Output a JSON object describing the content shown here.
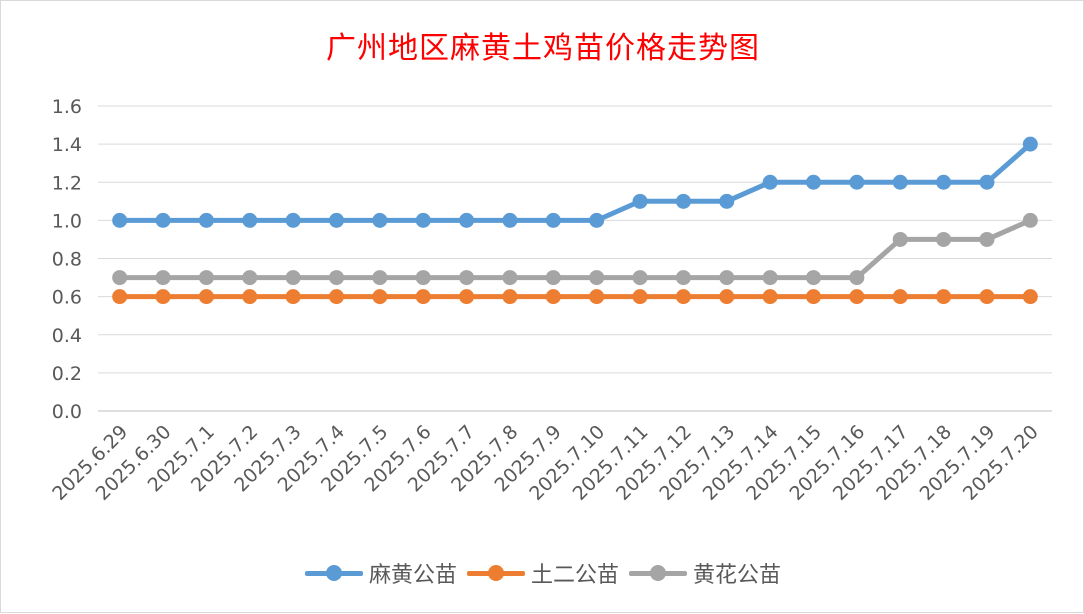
{
  "chart_data": {
    "type": "line",
    "title": "广州地区麻黄土鸡苗价格走势图",
    "xlabel": "",
    "ylabel": "",
    "categories": [
      "2025.6.29",
      "2025.6.30",
      "2025.7.1",
      "2025.7.2",
      "2025.7.3",
      "2025.7.4",
      "2025.7.5",
      "2025.7.6",
      "2025.7.7",
      "2025.7.8",
      "2025.7.9",
      "2025.7.10",
      "2025.7.11",
      "2025.7.12",
      "2025.7.13",
      "2025.7.14",
      "2025.7.15",
      "2025.7.16",
      "2025.7.17",
      "2025.7.18",
      "2025.7.19",
      "2025.7.20"
    ],
    "ylim": [
      0,
      1.6
    ],
    "yticks": [
      "0.0",
      "0.2",
      "0.4",
      "0.6",
      "0.8",
      "1.0",
      "1.2",
      "1.4",
      "1.6"
    ],
    "grid": true,
    "legend_position": "bottom",
    "series": [
      {
        "name": "麻黄公苗",
        "color": "#5b9bd5",
        "values": [
          1.0,
          1.0,
          1.0,
          1.0,
          1.0,
          1.0,
          1.0,
          1.0,
          1.0,
          1.0,
          1.0,
          1.0,
          1.1,
          1.1,
          1.1,
          1.2,
          1.2,
          1.2,
          1.2,
          1.2,
          1.2,
          1.4
        ]
      },
      {
        "name": "土二公苗",
        "color": "#ed7d31",
        "values": [
          0.6,
          0.6,
          0.6,
          0.6,
          0.6,
          0.6,
          0.6,
          0.6,
          0.6,
          0.6,
          0.6,
          0.6,
          0.6,
          0.6,
          0.6,
          0.6,
          0.6,
          0.6,
          0.6,
          0.6,
          0.6,
          0.6
        ]
      },
      {
        "name": "黄花公苗",
        "color": "#a5a5a5",
        "values": [
          0.7,
          0.7,
          0.7,
          0.7,
          0.7,
          0.7,
          0.7,
          0.7,
          0.7,
          0.7,
          0.7,
          0.7,
          0.7,
          0.7,
          0.7,
          0.7,
          0.7,
          0.7,
          0.9,
          0.9,
          0.9,
          1.0
        ]
      }
    ]
  }
}
